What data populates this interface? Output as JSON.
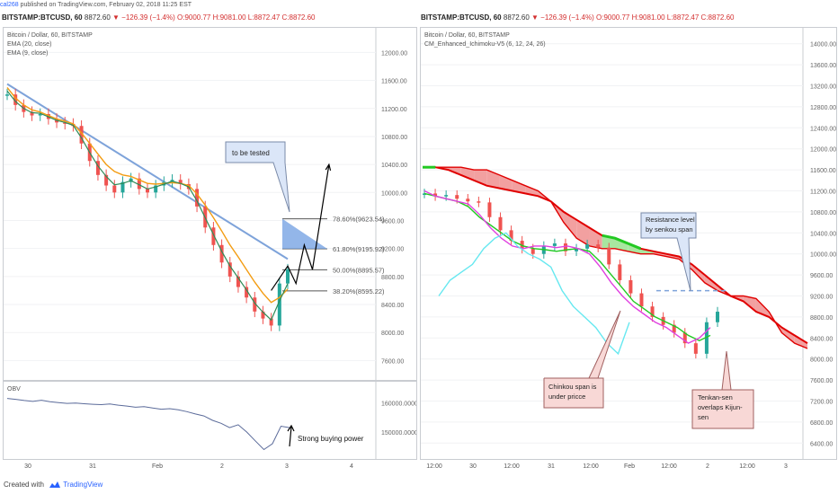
{
  "header": {
    "user": "cal268",
    "published": "published on TradingView.com, February 02, 2018 11:25 EST"
  },
  "left_chart": {
    "ticker": {
      "symbol": "BITSTAMP:BTCUSD, 60",
      "price": "8872.60",
      "change": "▼ −126.39 (−1.4%)",
      "ohlc": "O:9000.77 H:9081.00 L:8872.47 C:8872.60"
    },
    "legend": [
      "Bitcoin / Dollar, 60, BITSTAMP",
      "EMA (20, close)",
      "EMA (9, close)"
    ],
    "obv_label": "OBV"
  },
  "right_chart": {
    "ticker": {
      "symbol": "BITSTAMP:BTCUSD, 60",
      "price": "8872.60",
      "change": "▼ −126.39 (−1.4%)",
      "ohlc": "O:9000.77 H:9081.00 L:8872.47 C:8872.60"
    },
    "legend": [
      "Bitcoin / Dollar, 60, BITSTAMP",
      "CM_Enhanced_Ichimoku-V5 (6, 12, 24, 26)"
    ]
  },
  "footer": {
    "created_with": "Created with",
    "brand": "TradingView"
  },
  "chart_data": [
    {
      "type": "line",
      "title": "Bitcoin / Dollar, 60, BITSTAMP",
      "ylim": [
        7400,
        12300
      ],
      "y_ticks": [
        "12000.00",
        "11600.00",
        "11200.00",
        "10800.00",
        "10400.00",
        "10000.00",
        "9600.00",
        "9200.00",
        "8800.00",
        "8400.00",
        "8000.00",
        "7600.00"
      ],
      "x_ticks": [
        "30",
        "31",
        "Feb",
        "2",
        "3",
        "4"
      ],
      "series": [
        {
          "values": [
            11400,
            11250,
            11150,
            11100,
            11120,
            11050,
            11000,
            10980,
            10950,
            10700,
            10450,
            10250,
            10100,
            10000,
            10150,
            10200,
            10050,
            10000,
            10100,
            10150,
            10180,
            10120,
            10050,
            9800,
            9500,
            9250,
            9000,
            8800,
            8650,
            8500,
            8300,
            8200,
            8100,
            8700,
            8900
          ]
        },
        {
          "name": "EMA (20, close)",
          "values": [
            11500,
            11350,
            11250,
            11180,
            11150,
            11100,
            11050,
            11020,
            10980,
            10850,
            10700,
            10550,
            10400,
            10300,
            10250,
            10230,
            10180,
            10130,
            10120,
            10130,
            10140,
            10130,
            10100,
            9980,
            9820,
            9640,
            9450,
            9250,
            9080,
            8900,
            8720,
            8560,
            8430,
            8500,
            8620
          ]
        },
        {
          "name": "EMA (9, close)",
          "values": [
            11450,
            11300,
            11200,
            11140,
            11130,
            11080,
            11030,
            11000,
            10960,
            10780,
            10570,
            10380,
            10230,
            10110,
            10130,
            10170,
            10110,
            10050,
            10080,
            10120,
            10160,
            10130,
            10080,
            9880,
            9640,
            9400,
            9160,
            8950,
            8780,
            8610,
            8420,
            8290,
            8180,
            8450,
            8700
          ]
        }
      ],
      "trendline": [
        [
          0,
          11550
        ],
        [
          34,
          9050
        ]
      ],
      "fibonacci": [
        {
          "label": "78.60%(9623.54)",
          "value": 9623.54
        },
        {
          "label": "61.80%(9195.92)",
          "value": 9195.92
        },
        {
          "label": "50.00%(8895.57)",
          "value": 8895.57
        },
        {
          "label": "38.20%(8595.22)",
          "value": 8595.22
        }
      ],
      "annotation": "to be tested",
      "projection": [
        [
          32,
          8600
        ],
        [
          34,
          8950
        ],
        [
          35,
          8700
        ],
        [
          36,
          9250
        ],
        [
          37,
          8900
        ],
        [
          39,
          10400
        ]
      ]
    },
    {
      "type": "line",
      "title": "OBV",
      "y_ticks": [
        "160000.0000",
        "150000.0000"
      ],
      "ylim": [
        142000,
        166000
      ],
      "series": [
        {
          "name": "OBV",
          "values": [
            161500,
            161200,
            160800,
            160500,
            160900,
            160400,
            160100,
            159800,
            159900,
            159700,
            159500,
            159400,
            159600,
            159200,
            158900,
            158500,
            158700,
            158200,
            157800,
            158000,
            157600,
            157000,
            156200,
            155500,
            154000,
            153000,
            151500,
            152500,
            150000,
            147000,
            144000,
            146000,
            152000,
            151500
          ]
        }
      ],
      "annotation": "Strong buying power"
    },
    {
      "type": "line",
      "title": "Bitcoin / Dollar, 60, BITSTAMP",
      "ylim": [
        6200,
        14200
      ],
      "y_ticks": [
        "14000.00",
        "13600.00",
        "13200.00",
        "12800.00",
        "12400.00",
        "12000.00",
        "11600.00",
        "11200.00",
        "10800.00",
        "10400.00",
        "10000.00",
        "9600.00",
        "9200.00",
        "8800.00",
        "8400.00",
        "8000.00",
        "7600.00",
        "7200.00",
        "6800.00",
        "6400.00"
      ],
      "x_ticks": [
        "12:00",
        "30",
        "12:00",
        "31",
        "12:00",
        "Feb",
        "12:00",
        "2",
        "12:00",
        "3",
        "12:00",
        "4"
      ],
      "series": [
        {
          "name": "Price",
          "values": [
            11150,
            11100,
            11120,
            11050,
            11000,
            10980,
            10700,
            10450,
            10250,
            10100,
            10000,
            10150,
            10200,
            10050,
            10100,
            10180,
            10120,
            9800,
            9500,
            9250,
            9000,
            8800,
            8650,
            8500,
            8300,
            8100,
            8700,
            8900
          ]
        },
        {
          "name": "Senkou A",
          "values": [
            11650,
            11650,
            11600,
            11500,
            11400,
            11300,
            11250,
            11200,
            11150,
            11100,
            11000,
            10800,
            10650,
            10500,
            10350,
            10300,
            10200,
            10100,
            10050,
            10000,
            9950,
            9800,
            9600,
            9400,
            9200,
            9100,
            8900,
            8800,
            8600,
            8450,
            8300
          ]
        },
        {
          "name": "Senkou B",
          "values": [
            11650,
            11650,
            11650,
            11650,
            11600,
            11600,
            11500,
            11400,
            11300,
            11200,
            11000,
            10600,
            10300,
            10150,
            10100,
            10100,
            10050,
            10000,
            10000,
            9950,
            9900,
            9700,
            9450,
            9300,
            9200,
            9200,
            9150,
            8900,
            8500,
            8300,
            8200
          ]
        },
        {
          "name": "Chikou",
          "values": [
            9200,
            9500,
            9650,
            9800,
            10100,
            10300,
            10400,
            10150,
            10000,
            9900,
            9750,
            9300,
            9000,
            8800,
            8600,
            8300,
            8100,
            8700
          ]
        },
        {
          "name": "Tenkan",
          "values": [
            11200,
            11100,
            11050,
            11000,
            10950,
            10750,
            10500,
            10300,
            10150,
            10100,
            10150,
            10150,
            10120,
            10150,
            10100,
            10000,
            9750,
            9450,
            9200,
            9000,
            8850,
            8700,
            8600,
            8450,
            8300,
            8400,
            8600
          ]
        },
        {
          "name": "Kijun",
          "values": [
            11150,
            11100,
            11050,
            11000,
            10900,
            10700,
            10550,
            10400,
            10250,
            10150,
            10100,
            10080,
            10050,
            10080,
            10100,
            10050,
            9850,
            9600,
            9350,
            9100,
            8950,
            8800,
            8700,
            8600,
            8450,
            8350,
            8450
          ]
        }
      ],
      "resistance_level": 9300,
      "annotations": [
        "Resistance level by senkou span",
        "Chinkou span is under pricce",
        "Tenkan-sen overlaps Kijun-sen"
      ]
    }
  ]
}
